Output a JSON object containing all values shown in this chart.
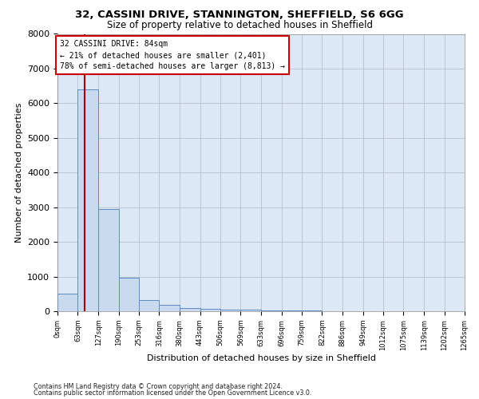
{
  "title_line1": "32, CASSINI DRIVE, STANNINGTON, SHEFFIELD, S6 6GG",
  "title_line2": "Size of property relative to detached houses in Sheffield",
  "xlabel": "Distribution of detached houses by size in Sheffield",
  "ylabel": "Number of detached properties",
  "footer_line1": "Contains HM Land Registry data © Crown copyright and database right 2024.",
  "footer_line2": "Contains public sector information licensed under the Open Government Licence v3.0.",
  "bar_edges": [
    0,
    63,
    127,
    190,
    253,
    316,
    380,
    443,
    506,
    569,
    633,
    696,
    759,
    822,
    886,
    949,
    1012,
    1075,
    1139,
    1202,
    1265
  ],
  "bar_heights": [
    500,
    6400,
    2950,
    975,
    325,
    175,
    100,
    75,
    50,
    45,
    30,
    20,
    15,
    10,
    7,
    5,
    4,
    3,
    2,
    2
  ],
  "bar_color": "#c9d9ee",
  "bar_edge_color": "#5b8cc8",
  "property_size": 84,
  "property_label": "32 CASSINI DRIVE: 84sqm",
  "annotation_line1": "← 21% of detached houses are smaller (2,401)",
  "annotation_line2": "78% of semi-detached houses are larger (8,813) →",
  "vline_color": "#aa0000",
  "annotation_box_color": "#ffffff",
  "annotation_box_edge": "#cc0000",
  "ylim": [
    0,
    8000
  ],
  "yticks": [
    0,
    1000,
    2000,
    3000,
    4000,
    5000,
    6000,
    7000,
    8000
  ],
  "xlim": [
    0,
    1265
  ],
  "background_color": "#ffffff",
  "plot_bg_color": "#dce8f5",
  "grid_color": "#b0b8c8"
}
